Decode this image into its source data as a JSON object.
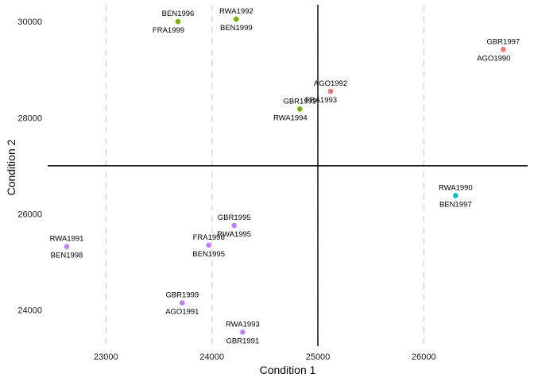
{
  "chart_data": {
    "type": "scatter",
    "xlabel": "Condition 1",
    "ylabel": "Condition 2",
    "xlim": [
      22450,
      26980
    ],
    "ylim": [
      23250,
      30350
    ],
    "x_ticks": [
      23000,
      24000,
      25000,
      26000
    ],
    "y_ticks": [
      24000,
      26000,
      28000,
      30000
    ],
    "x_grid": "dashed vertical lines at x ticks",
    "y_grid": "none",
    "reference_lines": {
      "x": 25000,
      "y": 27000
    },
    "legend": "none",
    "points": [
      {
        "x": 23680,
        "y": 30000,
        "color": "#7cae00",
        "labels": [
          {
            "text": "BEN1996",
            "pos": "above"
          },
          {
            "text": "FRA1999",
            "pos": "below-left"
          }
        ]
      },
      {
        "x": 24230,
        "y": 30050,
        "color": "#7cae00",
        "labels": [
          {
            "text": "RWA1992",
            "pos": "above"
          },
          {
            "text": "BEN1999",
            "pos": "below"
          }
        ]
      },
      {
        "x": 24830,
        "y": 28180,
        "color": "#7cae00",
        "labels": [
          {
            "text": "GBR1993",
            "pos": "above"
          },
          {
            "text": "RWA1994",
            "pos": "below-left"
          }
        ]
      },
      {
        "x": 25120,
        "y": 28550,
        "color": "#f8766d",
        "labels": [
          {
            "text": "AGO1992",
            "pos": "above"
          },
          {
            "text": "FRA1993",
            "pos": "below-left"
          }
        ]
      },
      {
        "x": 26750,
        "y": 29420,
        "color": "#f8766d",
        "labels": [
          {
            "text": "GBR1997",
            "pos": "above"
          },
          {
            "text": "AGO1990",
            "pos": "below-left"
          }
        ]
      },
      {
        "x": 26300,
        "y": 26380,
        "color": "#00bfc4",
        "labels": [
          {
            "text": "RWA1990",
            "pos": "above"
          },
          {
            "text": "BEN1997",
            "pos": "below"
          }
        ]
      },
      {
        "x": 22630,
        "y": 25320,
        "color": "#c77cff",
        "labels": [
          {
            "text": "RWA1991",
            "pos": "above"
          },
          {
            "text": "BEN1998",
            "pos": "below"
          }
        ]
      },
      {
        "x": 24210,
        "y": 25760,
        "color": "#c77cff",
        "labels": [
          {
            "text": "GBR1995",
            "pos": "above"
          },
          {
            "text": "RWA1995",
            "pos": "below"
          }
        ]
      },
      {
        "x": 23970,
        "y": 25350,
        "color": "#c77cff",
        "labels": [
          {
            "text": "FRA1996",
            "pos": "above"
          },
          {
            "text": "BEN1995",
            "pos": "below"
          }
        ]
      },
      {
        "x": 23720,
        "y": 24150,
        "color": "#c77cff",
        "labels": [
          {
            "text": "GBR1999",
            "pos": "above"
          },
          {
            "text": "AGO1991",
            "pos": "below"
          }
        ]
      },
      {
        "x": 24290,
        "y": 23540,
        "color": "#c77cff",
        "labels": [
          {
            "text": "RWA1993",
            "pos": "above"
          },
          {
            "text": "GBR1991",
            "pos": "below"
          }
        ]
      }
    ]
  }
}
